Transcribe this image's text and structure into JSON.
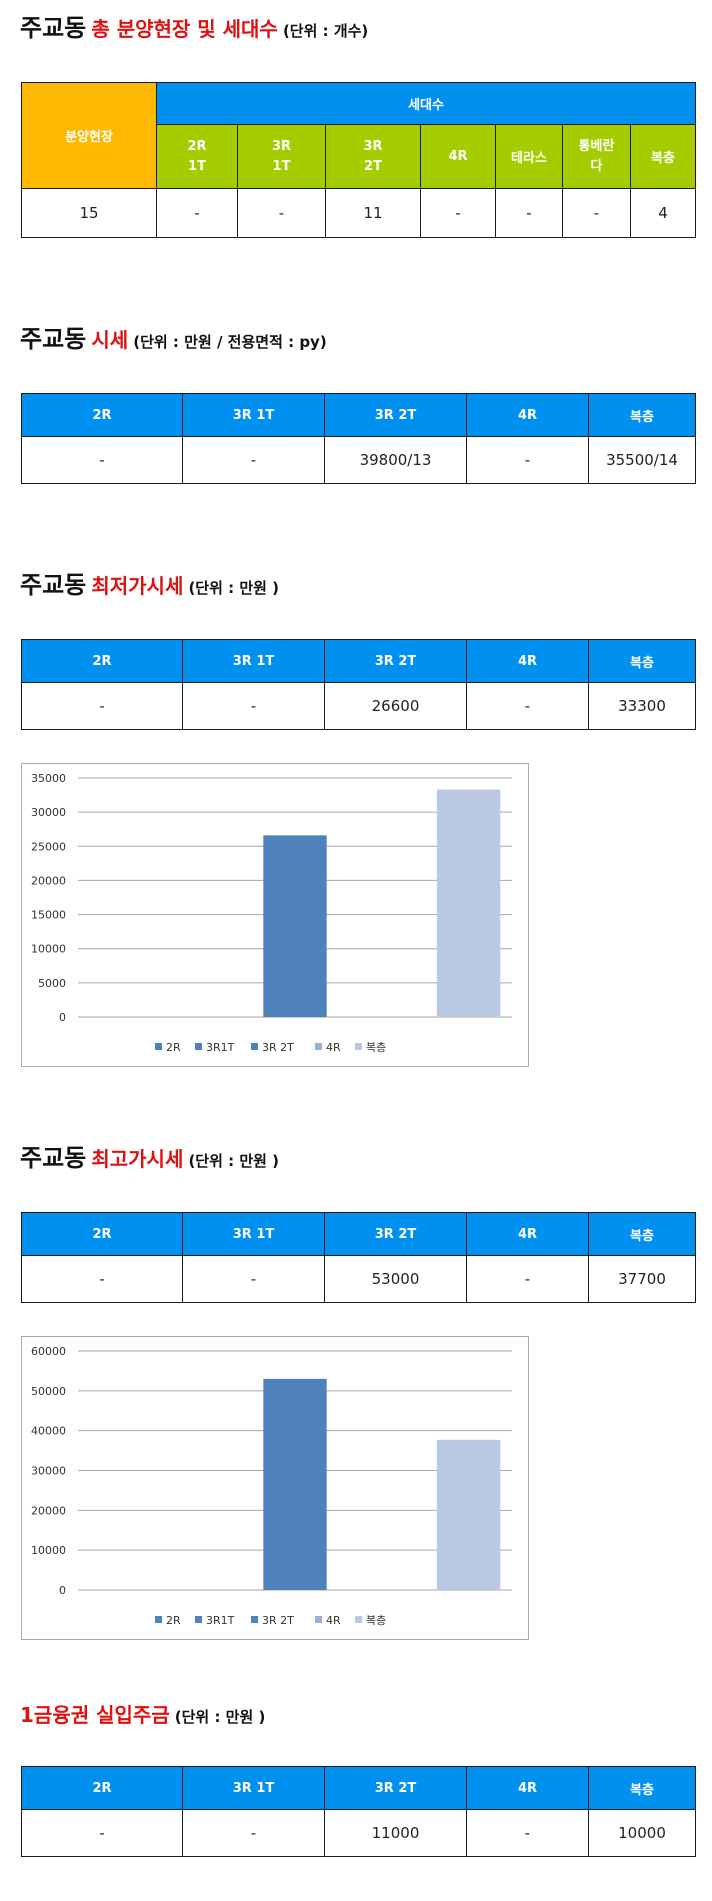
{
  "section1": {
    "title_black": "주교동",
    "title_red": "총 분양현장 및 세대수",
    "unit": "(단위 : 개수)",
    "table": {
      "header_site": "분양현장",
      "header_units": "세대수",
      "sub_headers": [
        "2R\n1T",
        "3R\n1T",
        "3R\n2T",
        "4R",
        "테라스",
        "통베란\n다",
        "복층"
      ],
      "row": [
        "15",
        "-",
        "-",
        "11",
        "-",
        "-",
        "-",
        "4"
      ]
    }
  },
  "section2": {
    "title_black": "주교동",
    "title_red": "시세",
    "unit": "(단위 : 만원 / 전용면적 : py)",
    "table": {
      "headers": [
        "2R",
        "3R 1T",
        "3R 2T",
        "4R",
        "복층"
      ],
      "row": [
        "-",
        "-",
        "39800/13",
        "-",
        "35500/14"
      ]
    }
  },
  "section3": {
    "title_black": "주교동",
    "title_red": "최저가시세",
    "unit": "(단위 : 만원 )",
    "table": {
      "headers": [
        "2R",
        "3R 1T",
        "3R 2T",
        "4R",
        "복층"
      ],
      "row": [
        "-",
        "-",
        "26600",
        "-",
        "33300"
      ]
    }
  },
  "section4": {
    "title_black": "주교동",
    "title_red": "최고가시세",
    "unit": "(단위 : 만원 )",
    "table": {
      "headers": [
        "2R",
        "3R 1T",
        "3R 2T",
        "4R",
        "복층"
      ],
      "row": [
        "-",
        "-",
        "53000",
        "-",
        "37700"
      ]
    }
  },
  "section5": {
    "title_red": "1금융권 실입주금",
    "unit": "(단위 : 만원 )",
    "table": {
      "headers": [
        "2R",
        "3R 1T",
        "3R 2T",
        "4R",
        "복층"
      ],
      "row": [
        "-",
        "-",
        "11000",
        "-",
        "10000"
      ]
    }
  },
  "chart_data": [
    {
      "type": "bar",
      "series": [
        {
          "name": "2R",
          "value": 0,
          "color": "#4f81bd"
        },
        {
          "name": "3R1T",
          "value": 0,
          "color": "#4f81bd"
        },
        {
          "name": "3R 2T",
          "value": 26600,
          "color": "#4f81bd"
        },
        {
          "name": "4R",
          "value": 0,
          "color": "#95b3d7"
        },
        {
          "name": "복층",
          "value": 33300,
          "color": "#b9c9e3"
        }
      ],
      "ylim": [
        0,
        35000
      ],
      "yticks": [
        0,
        5000,
        10000,
        15000,
        20000,
        25000,
        30000,
        35000
      ],
      "grid": true,
      "legend": "bottom"
    },
    {
      "type": "bar",
      "series": [
        {
          "name": "2R",
          "value": 0,
          "color": "#4f81bd"
        },
        {
          "name": "3R1T",
          "value": 0,
          "color": "#4f81bd"
        },
        {
          "name": "3R 2T",
          "value": 53000,
          "color": "#4f81bd"
        },
        {
          "name": "4R",
          "value": 0,
          "color": "#95b3d7"
        },
        {
          "name": "복층",
          "value": 37700,
          "color": "#b9c9e3"
        }
      ],
      "ylim": [
        0,
        60000
      ],
      "yticks": [
        0,
        10000,
        20000,
        30000,
        40000,
        50000,
        60000
      ],
      "grid": true,
      "legend": "bottom"
    }
  ]
}
